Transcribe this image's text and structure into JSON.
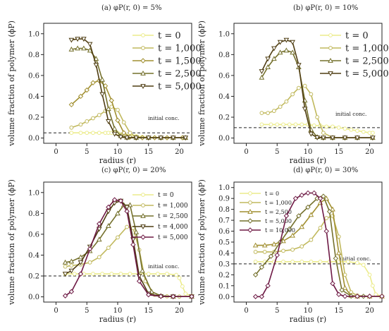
{
  "chart_data": [
    {
      "type": "line",
      "title": "(a) φP(r, 0) = 5%",
      "xlabel": "radius (r)",
      "ylabel": "volume fraction of polymer (ϕP)",
      "xlim": [
        -2,
        22
      ],
      "ylim": [
        -0.05,
        1.1
      ],
      "xticks": [
        "0",
        "5",
        "10",
        "15",
        "20"
      ],
      "yticks": [
        "0.0",
        "0.2",
        "0.4",
        "0.6",
        "0.8",
        "1.0"
      ],
      "annotation": "initial conc.",
      "initial_conc": 0.05,
      "legend_position": "right",
      "series": [
        {
          "name": "t = 0",
          "color": "#ecec8c",
          "marker": "circle",
          "x": [
            2.5,
            4,
            5,
            6,
            7,
            8,
            8.5,
            9,
            9.5,
            10,
            11,
            12,
            13,
            14,
            16,
            18,
            20.5
          ],
          "y": [
            0.05,
            0.05,
            0.05,
            0.05,
            0.05,
            0.05,
            0.05,
            0.05,
            0.05,
            0.05,
            0.04,
            0.03,
            0.02,
            0.01,
            0.005,
            0.003,
            0.003
          ]
        },
        {
          "name": "t = 1,000",
          "color": "#c1b95e",
          "marker": "circle",
          "x": [
            2.5,
            4,
            5,
            6,
            7,
            8,
            9,
            10,
            11,
            12,
            13,
            14,
            15,
            17,
            19,
            21
          ],
          "y": [
            0.1,
            0.13,
            0.16,
            0.19,
            0.22,
            0.26,
            0.3,
            0.27,
            0.15,
            0.05,
            0.01,
            0.005,
            0.003,
            0.003,
            0.003,
            0.003
          ]
        },
        {
          "name": "t = 1,500",
          "color": "#a18f30",
          "marker": "diamond",
          "x": [
            2.5,
            4,
            5,
            6,
            7,
            8,
            9,
            10,
            11,
            12,
            13,
            14,
            16,
            18,
            20.5
          ],
          "y": [
            0.32,
            0.4,
            0.46,
            0.53,
            0.55,
            0.5,
            0.36,
            0.17,
            0.05,
            0.01,
            0.003,
            0.003,
            0.003,
            0.003,
            0.003
          ]
        },
        {
          "name": "t = 2,500",
          "color": "#74702c",
          "marker": "triangle-up",
          "x": [
            2.5,
            3.5,
            4.5,
            5.5,
            6.5,
            7.5,
            8.5,
            9.5,
            10.5,
            11.5,
            13,
            15,
            17,
            19,
            21
          ],
          "y": [
            0.85,
            0.86,
            0.86,
            0.84,
            0.76,
            0.56,
            0.28,
            0.09,
            0.02,
            0.005,
            0.003,
            0.003,
            0.003,
            0.003,
            0.003
          ]
        },
        {
          "name": "t = 5,000",
          "color": "#4f3d12",
          "marker": "triangle-down",
          "x": [
            2.5,
            3.5,
            4.5,
            5.5,
            6.5,
            7.5,
            8.5,
            9.5,
            10.5,
            11.5,
            13,
            15,
            17,
            19,
            21
          ],
          "y": [
            0.94,
            0.95,
            0.95,
            0.9,
            0.7,
            0.42,
            0.16,
            0.04,
            0.01,
            0.003,
            0.003,
            0.003,
            0.003,
            0.003,
            0.003
          ]
        }
      ]
    },
    {
      "type": "line",
      "title": "(b) φP(r, 0) = 10%",
      "xlabel": "radius (r)",
      "ylabel": "volume fraction of polymer (ϕP)",
      "xlim": [
        -2,
        22
      ],
      "ylim": [
        -0.05,
        1.1
      ],
      "xticks": [
        "0",
        "5",
        "10",
        "15",
        "20"
      ],
      "yticks": [
        "0.0",
        "0.2",
        "0.4",
        "0.6",
        "0.8",
        "1.0"
      ],
      "annotation": "initial conc.",
      "initial_conc": 0.1,
      "legend_position": "right",
      "series": [
        {
          "name": "t = 0",
          "color": "#ecec8c",
          "marker": "circle",
          "x": [
            2.5,
            4,
            5,
            6,
            7,
            8,
            9,
            10,
            11,
            12,
            13,
            14,
            15,
            16,
            17,
            18,
            19,
            20,
            20.5
          ],
          "y": [
            0.13,
            0.13,
            0.13,
            0.13,
            0.13,
            0.13,
            0.13,
            0.13,
            0.12,
            0.12,
            0.11,
            0.11,
            0.1,
            0.09,
            0.08,
            0.07,
            0.06,
            0.05,
            0.05
          ]
        },
        {
          "name": "t = 1,000",
          "color": "#c1b95e",
          "marker": "circle",
          "x": [
            2.5,
            3.5,
            4.5,
            5.5,
            6.5,
            7.5,
            8.5,
            9.5,
            10.5,
            11.5,
            12.5,
            14,
            16,
            18,
            20.5
          ],
          "y": [
            0.24,
            0.24,
            0.26,
            0.3,
            0.35,
            0.42,
            0.48,
            0.5,
            0.42,
            0.2,
            0.05,
            0.005,
            0.003,
            0.003,
            0.003
          ]
        },
        {
          "name": "t = 2,500",
          "color": "#74702c",
          "marker": "triangle-up",
          "x": [
            2.5,
            3.5,
            4.5,
            5.5,
            6.5,
            7.5,
            8.5,
            9.5,
            10.5,
            11.5,
            12.5,
            14,
            16,
            18,
            20.5
          ],
          "y": [
            0.58,
            0.68,
            0.76,
            0.82,
            0.84,
            0.82,
            0.68,
            0.36,
            0.08,
            0.01,
            0.003,
            0.003,
            0.003,
            0.003,
            0.003
          ]
        },
        {
          "name": "t = 5,000",
          "color": "#4f3d12",
          "marker": "triangle-down",
          "x": [
            2.5,
            3.5,
            4.5,
            5.5,
            6.5,
            7.5,
            8.5,
            9.5,
            10.5,
            11.5,
            12.5,
            14,
            16,
            18,
            20.5
          ],
          "y": [
            0.64,
            0.76,
            0.86,
            0.92,
            0.94,
            0.92,
            0.7,
            0.28,
            0.04,
            0.005,
            0.003,
            0.003,
            0.003,
            0.003,
            0.003
          ]
        }
      ]
    },
    {
      "type": "line",
      "title": "(c) φP(r, 0) = 20%",
      "xlabel": "radius (r)",
      "ylabel": "volume fraction of polymer (ϕP)",
      "xlim": [
        -2,
        22
      ],
      "ylim": [
        -0.05,
        1.1
      ],
      "xticks": [
        "0",
        "5",
        "10",
        "15",
        "20"
      ],
      "yticks": [
        "0.0",
        "0.2",
        "0.4",
        "0.6",
        "0.8",
        "1.0"
      ],
      "annotation": "initial conc.",
      "initial_conc": 0.2,
      "legend_position": "right",
      "series": [
        {
          "name": "t = 0",
          "color": "#ecec8c",
          "marker": "circle",
          "x": [
            1.5,
            3,
            4.5,
            6,
            7.5,
            9,
            10.5,
            12,
            13.5,
            15,
            16.5,
            18,
            19.5,
            20,
            20.5,
            21,
            22
          ],
          "y": [
            0.22,
            0.22,
            0.22,
            0.22,
            0.22,
            0.22,
            0.22,
            0.22,
            0.22,
            0.22,
            0.22,
            0.22,
            0.21,
            0.18,
            0.1,
            0.03,
            0.01
          ]
        },
        {
          "name": "t = 1,000",
          "color": "#c1b95e",
          "marker": "circle",
          "x": [
            1.5,
            2.5,
            4,
            5.5,
            7,
            8.5,
            10,
            11.5,
            12.5,
            13.5,
            14.5,
            16,
            18,
            20,
            22
          ],
          "y": [
            0.29,
            0.3,
            0.31,
            0.33,
            0.38,
            0.47,
            0.57,
            0.67,
            0.66,
            0.45,
            0.15,
            0.02,
            0.005,
            0.003,
            0.003
          ]
        },
        {
          "name": "t = 2,500",
          "color": "#74702c",
          "marker": "triangle-up",
          "x": [
            1.5,
            2.5,
            4,
            5.5,
            7,
            8.5,
            10,
            11,
            12,
            13,
            14,
            15.5,
            17,
            19,
            22
          ],
          "y": [
            0.33,
            0.34,
            0.38,
            0.44,
            0.55,
            0.68,
            0.8,
            0.88,
            0.88,
            0.62,
            0.25,
            0.05,
            0.01,
            0.003,
            0.003
          ]
        },
        {
          "name": "t = 4,000",
          "color": "#4f3d12",
          "marker": "triangle-down",
          "x": [
            1.5,
            2.5,
            4,
            5.5,
            7,
            8.5,
            9.5,
            10.5,
            11.5,
            12.5,
            13.5,
            15,
            17,
            19,
            22
          ],
          "y": [
            0.22,
            0.25,
            0.33,
            0.48,
            0.65,
            0.82,
            0.9,
            0.92,
            0.86,
            0.55,
            0.2,
            0.03,
            0.005,
            0.003,
            0.003
          ]
        },
        {
          "name": "t = 5,000",
          "color": "#6e1a45",
          "marker": "diamond",
          "x": [
            1.5,
            2.5,
            4,
            5.5,
            7,
            8.5,
            9.5,
            10.5,
            11.5,
            12.5,
            13.5,
            15,
            17,
            19,
            22
          ],
          "y": [
            0.01,
            0.05,
            0.22,
            0.46,
            0.7,
            0.86,
            0.93,
            0.92,
            0.82,
            0.5,
            0.15,
            0.02,
            0.005,
            0.003,
            0.003
          ]
        }
      ]
    },
    {
      "type": "line",
      "title": "(d) φP(r, 0) = 30%",
      "xlabel": "radius (r)",
      "ylabel": "volume fraction of polymer (ϕP)",
      "xlim": [
        -2,
        22
      ],
      "ylim": [
        -0.05,
        1.05
      ],
      "xticks": [
        "0",
        "5",
        "10",
        "15",
        "20"
      ],
      "yticks": [
        "0.0",
        "0.1",
        "0.2",
        "0.3",
        "0.4",
        "0.5",
        "0.6",
        "0.7",
        "0.8",
        "0.9",
        "1.0"
      ],
      "annotation": "initial conc.",
      "initial_conc": 0.3,
      "legend_position": "top-left",
      "series": [
        {
          "name": "t = 0",
          "color": "#ecec8c",
          "marker": "circle",
          "x": [
            1.5,
            3,
            4.5,
            6,
            7.5,
            9,
            10.5,
            12,
            13.5,
            15,
            16.5,
            18,
            19,
            20,
            20.5,
            21,
            22
          ],
          "y": [
            0.32,
            0.32,
            0.32,
            0.32,
            0.32,
            0.32,
            0.32,
            0.32,
            0.32,
            0.32,
            0.32,
            0.31,
            0.29,
            0.2,
            0.1,
            0.02,
            0.005
          ]
        },
        {
          "name": "t = 1,000",
          "color": "#c1b95e",
          "marker": "circle",
          "x": [
            1.5,
            3,
            4.5,
            6,
            7.5,
            9,
            10.5,
            12,
            13,
            14,
            15,
            16,
            17,
            18,
            20,
            22
          ],
          "y": [
            0.41,
            0.41,
            0.41,
            0.42,
            0.43,
            0.46,
            0.52,
            0.63,
            0.72,
            0.74,
            0.55,
            0.2,
            0.04,
            0.01,
            0.003,
            0.003
          ]
        },
        {
          "name": "t = 2,500",
          "color": "#a18f30",
          "marker": "triangle-up",
          "x": [
            1.5,
            3,
            4.5,
            6,
            7.5,
            9,
            10.5,
            12,
            13,
            14,
            15,
            16,
            17,
            18,
            20,
            22
          ],
          "y": [
            0.47,
            0.47,
            0.48,
            0.51,
            0.56,
            0.64,
            0.75,
            0.86,
            0.9,
            0.8,
            0.4,
            0.08,
            0.01,
            0.003,
            0.003,
            0.003
          ]
        },
        {
          "name": "t = 5,000",
          "color": "#74702c",
          "marker": "diamond",
          "x": [
            1.5,
            2.5,
            4,
            5.5,
            7,
            8.5,
            10,
            11.5,
            12.5,
            13.5,
            14.5,
            15.5,
            17,
            19,
            22
          ],
          "y": [
            0.2,
            0.27,
            0.37,
            0.5,
            0.62,
            0.74,
            0.82,
            0.9,
            0.92,
            0.78,
            0.35,
            0.06,
            0.005,
            0.003,
            0.003
          ]
        },
        {
          "name": "t = 10,000",
          "color": "#6e1a45",
          "marker": "diamond",
          "x": [
            1.5,
            2.5,
            3.5,
            5,
            6.5,
            8,
            9,
            10,
            11,
            12,
            13,
            14,
            15,
            16,
            18,
            20,
            22
          ],
          "y": [
            0.0,
            0.0,
            0.1,
            0.38,
            0.74,
            0.9,
            0.93,
            0.95,
            0.95,
            0.9,
            0.6,
            0.12,
            0.02,
            0.003,
            0.003,
            0.003,
            0.003
          ]
        }
      ]
    }
  ]
}
